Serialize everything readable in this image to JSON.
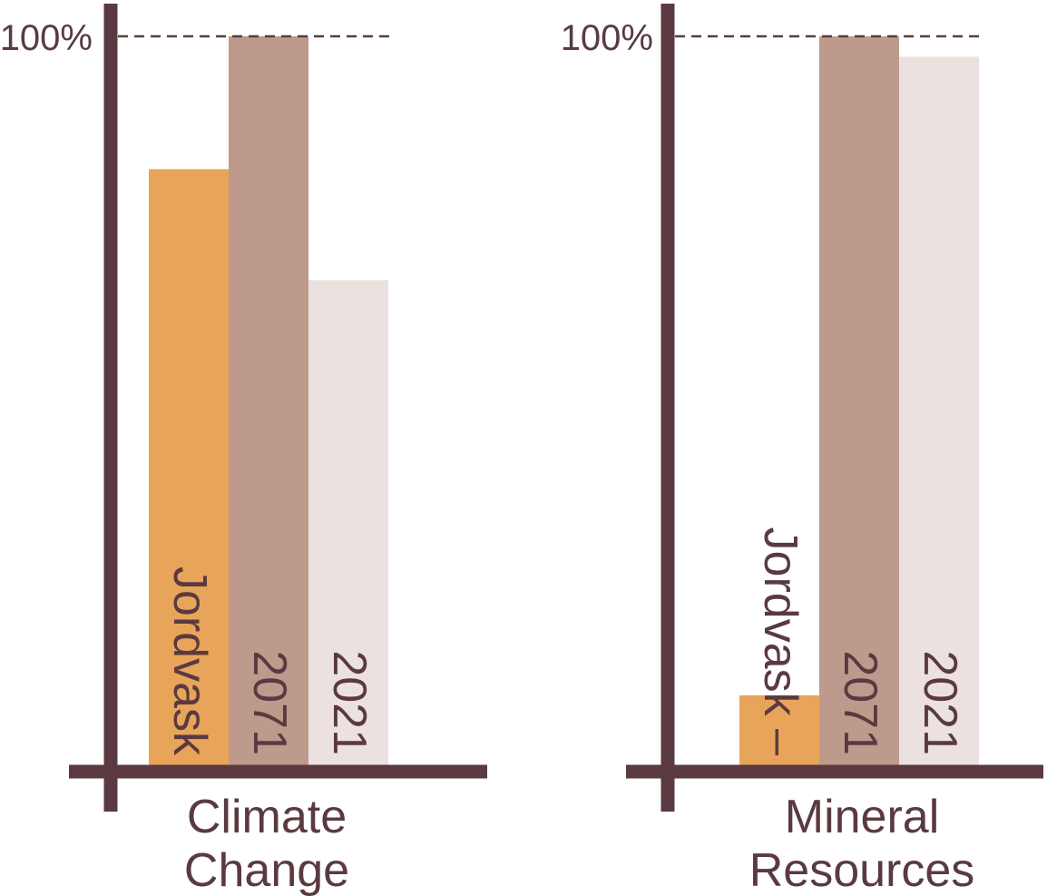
{
  "colors": {
    "axis": "#5a3a40",
    "text": "#5a3a40",
    "jordvask": "#e8a458",
    "y2071": "#be9a8d",
    "y2021": "#ebe2df"
  },
  "chart_data": [
    {
      "type": "bar",
      "category": [
        "Climate",
        "Change"
      ],
      "reference_label": "100%",
      "reference_value": 100,
      "ylim": [
        0,
        100
      ],
      "series": [
        {
          "label": "Jordvask",
          "value": 81.8,
          "color_key": "jordvask"
        },
        {
          "label": "2071",
          "value": 100,
          "color_key": "y2071"
        },
        {
          "label": "2021",
          "value": 66.6,
          "color_key": "y2021"
        }
      ]
    },
    {
      "type": "bar",
      "category": [
        "Mineral",
        "Resources"
      ],
      "reference_label": "100%",
      "reference_value": 100,
      "ylim": [
        0,
        100
      ],
      "series": [
        {
          "label": "Jordvask –",
          "value": 9.7,
          "color_key": "jordvask"
        },
        {
          "label": "2071",
          "value": 100,
          "color_key": "y2071"
        },
        {
          "label": "2021",
          "value": 97.2,
          "color_key": "y2021"
        }
      ]
    }
  ]
}
